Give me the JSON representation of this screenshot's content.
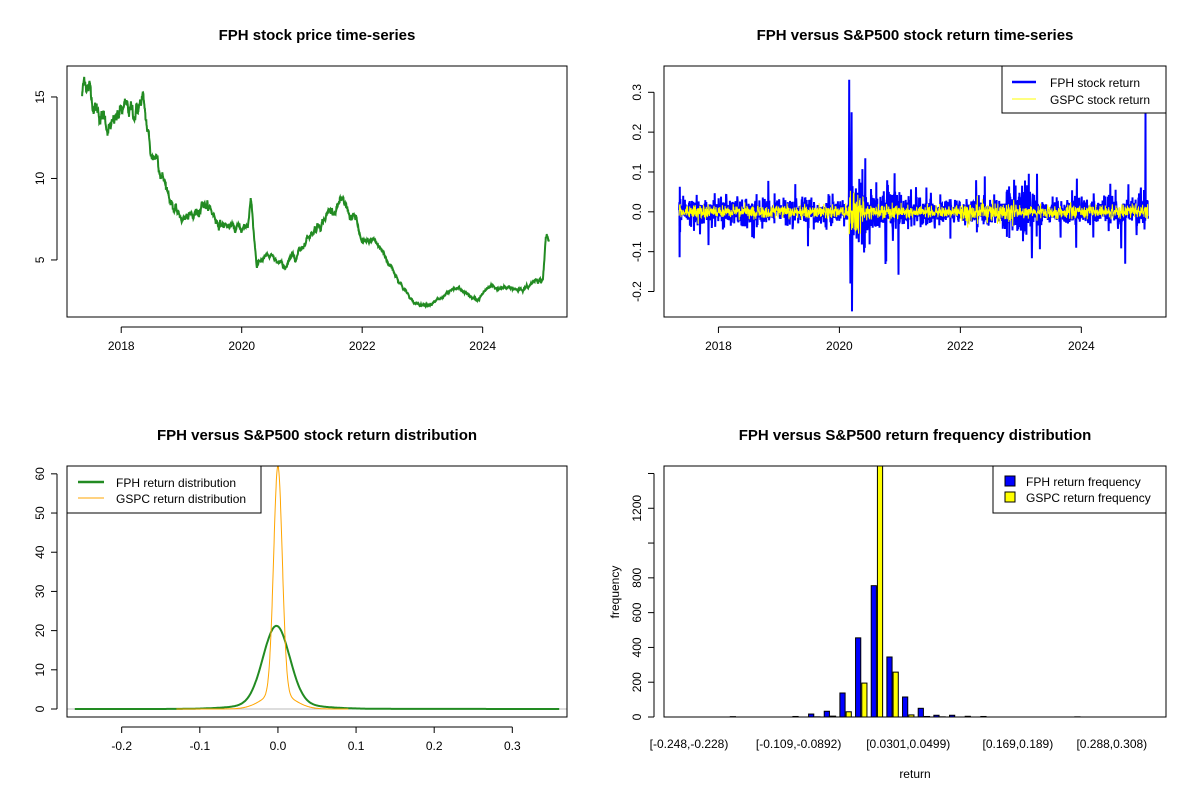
{
  "chart_data": [
    {
      "type": "line",
      "title": "FPH stock price time-series",
      "xlabel": "",
      "ylabel": "",
      "xlim": [
        2017.1,
        2025.4
      ],
      "ylim": [
        1.5,
        16.9
      ],
      "xticks": [
        2018,
        2020,
        2022,
        2024
      ],
      "yticks": [
        5,
        10,
        15
      ],
      "color": "#228B22",
      "series": [
        {
          "name": "FPH price",
          "anchors_x": [
            2017.35,
            2017.4,
            2017.6,
            2017.85,
            2018.0,
            2018.2,
            2018.35,
            2018.5,
            2018.6,
            2018.75,
            2018.95,
            2019.2,
            2019.35,
            2019.6,
            2019.9,
            2020.1,
            2020.15,
            2020.25,
            2020.4,
            2020.7,
            2020.9,
            2021.1,
            2021.35,
            2021.6,
            2021.9,
            2022.0,
            2022.2,
            2022.4,
            2022.6,
            2022.85,
            2023.2,
            2023.6,
            2023.9,
            2024.1,
            2024.5,
            2024.75,
            2024.9,
            2025.0,
            2025.05,
            2025.1
          ],
          "anchors_y": [
            15.1,
            16.2,
            14.3,
            13.0,
            14.0,
            14.0,
            14.8,
            11.3,
            11.5,
            9.5,
            7.6,
            7.5,
            8.8,
            7.4,
            6.8,
            7.0,
            8.9,
            4.8,
            5.2,
            4.5,
            5.3,
            6.5,
            7.6,
            8.5,
            7.4,
            5.8,
            6.2,
            5.1,
            3.9,
            2.3,
            2.4,
            3.2,
            2.5,
            3.3,
            3.2,
            3.3,
            3.9,
            3.8,
            6.5,
            5.9
          ]
        }
      ]
    },
    {
      "type": "line",
      "title": "FPH versus S&P500 stock return time-series",
      "xlabel": "",
      "ylabel": "",
      "xlim": [
        2017.1,
        2025.4
      ],
      "ylim": [
        -0.264,
        0.366
      ],
      "xticks": [
        2018,
        2020,
        2022,
        2024
      ],
      "yticks": [
        "-0.2",
        "-0.1",
        "0.0",
        "0.1",
        "0.2",
        "0.3"
      ],
      "legend": {
        "position": "top-right",
        "entries": [
          "FPH stock return",
          "GSPC stock return"
        ]
      },
      "series": [
        {
          "name": "FPH stock return",
          "color": "#0000FF",
          "typical_abs": 0.025,
          "max": 0.25,
          "min": -0.25,
          "extremes": [
            [
              2020.2,
              0.25
            ],
            [
              2020.21,
              -0.25
            ],
            [
              2020.18,
              -0.18
            ],
            [
              2025.06,
              0.25
            ]
          ]
        },
        {
          "name": "GSPC stock return",
          "color": "#FFFF00",
          "typical_abs": 0.01,
          "max": 0.09,
          "min": -0.13
        }
      ]
    },
    {
      "type": "line",
      "title": "FPH versus S&P500 stock return distribution",
      "xlabel": "",
      "ylabel": "",
      "xlim": [
        -0.27,
        0.37
      ],
      "ylim": [
        0,
        62
      ],
      "xticks": [
        "-0.2",
        "-0.1",
        "0.0",
        "0.1",
        "0.2",
        "0.3"
      ],
      "yticks": [
        "0",
        "10",
        "20",
        "30",
        "40",
        "50",
        "60"
      ],
      "legend": {
        "position": "top-left",
        "entries": [
          "FPH return distribution",
          "GSPC return distribution"
        ]
      },
      "series": [
        {
          "name": "FPH return distribution",
          "color": "#228B22",
          "peak_x": -0.002,
          "peak_y": 21.3,
          "range": [
            -0.26,
            0.36
          ]
        },
        {
          "name": "GSPC return distribution",
          "color": "#FFA500",
          "peak_x": 0.0,
          "peak_y": 58.5,
          "range": [
            -0.13,
            0.09
          ]
        }
      ]
    },
    {
      "type": "bar",
      "title": "FPH versus S&P500 return frequency distribution",
      "xlabel": "return",
      "ylabel": "frequency",
      "ylim": [
        0,
        1443
      ],
      "yticks": [
        "0",
        "200",
        "400",
        "600",
        "800",
        "1200"
      ],
      "xtick_labels": [
        {
          "bin": 0,
          "label": "[-0.248,-0.228)"
        },
        {
          "bin": 7,
          "label": "[-0.109,-0.0892)"
        },
        {
          "bin": 14,
          "label": "[0.0301,0.0499)"
        },
        {
          "bin": 21,
          "label": "[0.169,0.189)"
        },
        {
          "bin": 27,
          "label": "[0.288,0.308)"
        }
      ],
      "legend": {
        "position": "top-right",
        "entries": [
          "FPH return frequency",
          "GSPC return frequency"
        ]
      },
      "series": [
        {
          "name": "FPH return frequency",
          "color": "#0000FF",
          "values": [
            0,
            0,
            0,
            2,
            0,
            0,
            0,
            3,
            17,
            33,
            138,
            455,
            755,
            345,
            115,
            50,
            10,
            10,
            4,
            3,
            0,
            0,
            0,
            0,
            0,
            1,
            0,
            0,
            0,
            0
          ]
        },
        {
          "name": "GSPC return frequency",
          "color": "#FFFF00",
          "values": [
            0,
            0,
            0,
            0,
            0,
            0,
            0,
            0,
            1,
            5,
            30,
            195,
            1443,
            258,
            12,
            3,
            1,
            0,
            0,
            0,
            0,
            0,
            0,
            0,
            0,
            0,
            0,
            0,
            0,
            0
          ]
        }
      ]
    }
  ]
}
